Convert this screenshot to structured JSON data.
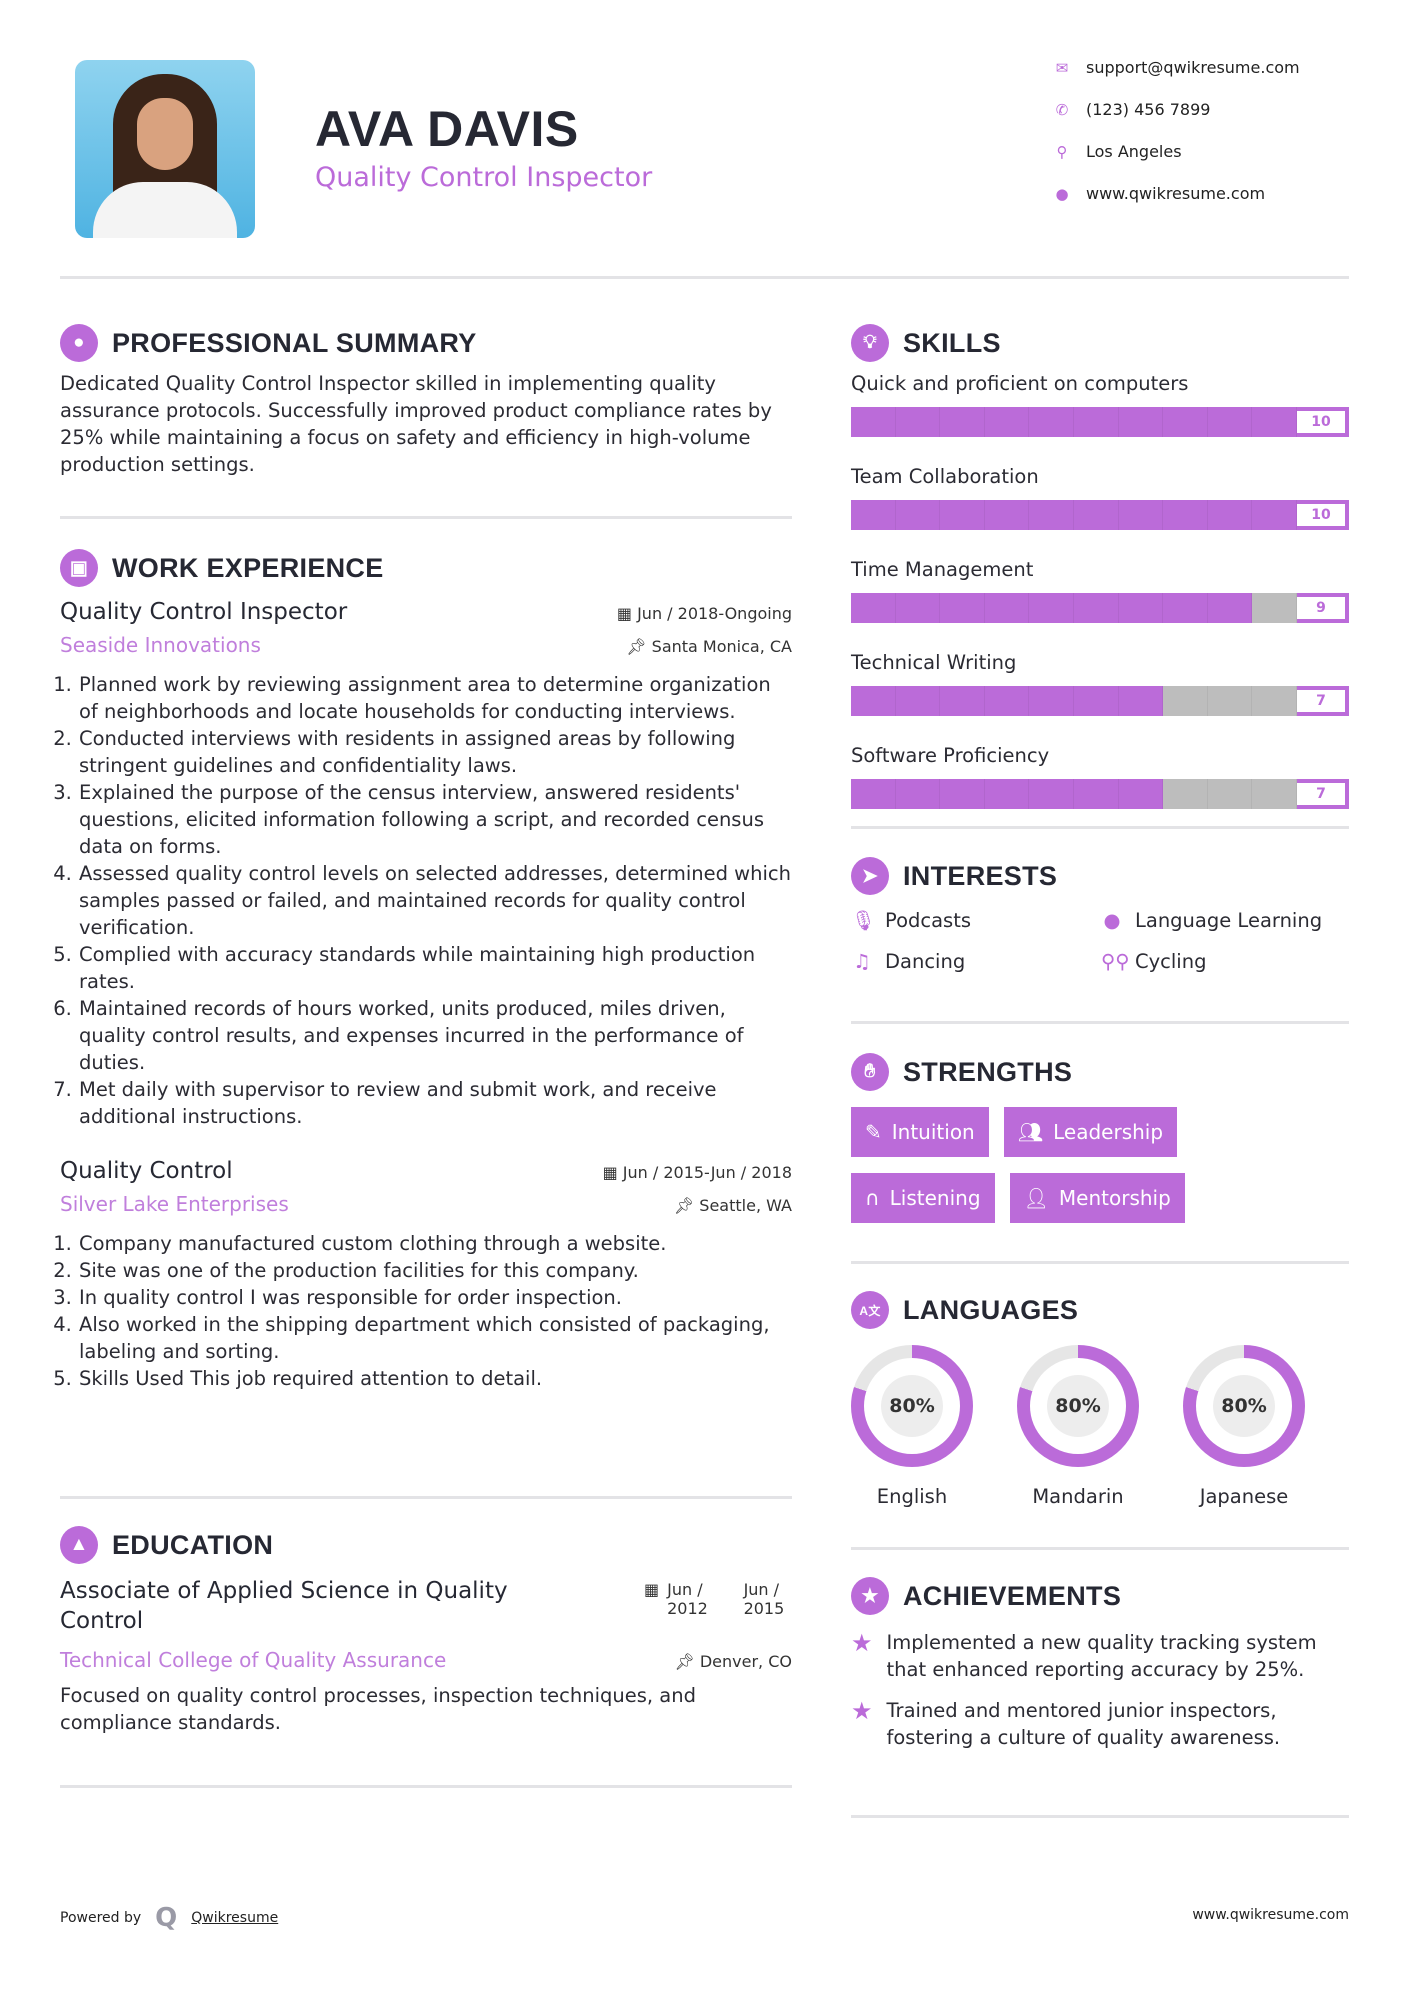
{
  "header": {
    "name": "AVA DAVIS",
    "title": "Quality Control Inspector",
    "contacts": [
      {
        "icon": "envelope-icon",
        "text": "support@qwikresume.com"
      },
      {
        "icon": "phone-icon",
        "text": "(123) 456 7899"
      },
      {
        "icon": "map-pin-icon",
        "text": "Los Angeles"
      },
      {
        "icon": "globe-icon",
        "text": "www.qwikresume.com"
      }
    ]
  },
  "summary": {
    "heading": "PROFESSIONAL SUMMARY",
    "text": "Dedicated Quality Control Inspector skilled in implementing quality assurance protocols. Successfully improved product compliance rates by 25% while maintaining a focus on safety and efficiency in high-volume production settings."
  },
  "experience": {
    "heading": "WORK EXPERIENCE",
    "jobs": [
      {
        "title": "Quality Control Inspector",
        "date": "Jun / 2018-Ongoing",
        "company": "Seaside Innovations",
        "location": "Santa Monica, CA",
        "bullets": [
          "Planned work by reviewing assignment area to determine organization of neighborhoods and locate households for conducting interviews.",
          "Conducted interviews with residents in assigned areas by following stringent guidelines and confidentiality laws.",
          "Explained the purpose of the census interview, answered residents' questions, elicited information following a script, and recorded census data on forms.",
          "Assessed quality control levels on selected addresses, determined which samples passed or failed, and maintained records for quality control verification.",
          "Complied with accuracy standards while maintaining high production rates.",
          "Maintained records of hours worked, units produced, miles driven, quality control results, and expenses incurred in the performance of duties.",
          "Met daily with supervisor to review and submit work, and receive additional instructions."
        ]
      },
      {
        "title": "Quality Control",
        "date": "Jun / 2015-Jun / 2018",
        "company": "Silver Lake Enterprises",
        "location": "Seattle, WA",
        "bullets": [
          "Company manufactured custom clothing through a website.",
          "Site was one of the production facilities for this company.",
          "In quality control I was responsible for order inspection.",
          "Also worked in the shipping department which consisted of packaging, labeling and sorting.",
          "Skills Used This job required attention to detail."
        ]
      }
    ]
  },
  "education": {
    "heading": "EDUCATION",
    "degree": "Associate of Applied Science in Quality Control",
    "start": "Jun / 2012",
    "end": "Jun / 2015",
    "school": "Technical College of Quality Assurance",
    "location": "Denver, CO",
    "text": "Focused on quality control processes, inspection techniques, and compliance standards."
  },
  "skills": {
    "heading": "SKILLS",
    "items": [
      {
        "label": "Quick and proficient on computers",
        "value": 10
      },
      {
        "label": "Team Collaboration",
        "value": 10
      },
      {
        "label": "Time Management",
        "value": 9
      },
      {
        "label": "Technical Writing",
        "value": 7
      },
      {
        "label": "Software Proficiency",
        "value": 7
      }
    ]
  },
  "interests": {
    "heading": "INTERESTS",
    "items": [
      {
        "icon": "microphone-icon",
        "label": "Podcasts"
      },
      {
        "icon": "globe-icon",
        "label": "Language Learning"
      },
      {
        "icon": "music-note-icon",
        "label": "Dancing"
      },
      {
        "icon": "bicycle-icon",
        "label": "Cycling"
      }
    ]
  },
  "strengths": {
    "heading": "STRENGTHS",
    "items": [
      {
        "icon": "magic-wand-icon",
        "label": "Intuition"
      },
      {
        "icon": "users-icon",
        "label": "Leadership"
      },
      {
        "icon": "headphones-icon",
        "label": "Listening"
      },
      {
        "icon": "user-plus-icon",
        "label": "Mentorship"
      }
    ]
  },
  "languages": {
    "heading": "LANGUAGES",
    "items": [
      {
        "label": "English",
        "percent": 80,
        "text": "80%"
      },
      {
        "label": "Mandarin",
        "percent": 80,
        "text": "80%"
      },
      {
        "label": "Japanese",
        "percent": 80,
        "text": "80%"
      }
    ]
  },
  "achievements": {
    "heading": "ACHIEVEMENTS",
    "items": [
      "Implemented a new quality tracking system that enhanced reporting accuracy by 25%.",
      "Trained and mentored junior inspectors, fostering a culture of quality awareness."
    ]
  },
  "footer": {
    "powered": "Powered by",
    "brand": "Qwikresume",
    "url": "www.qwikresume.com"
  },
  "colors": {
    "accent": "#bb6bd9",
    "track": "#bdbdbd",
    "divider": "#e3e3e6"
  }
}
